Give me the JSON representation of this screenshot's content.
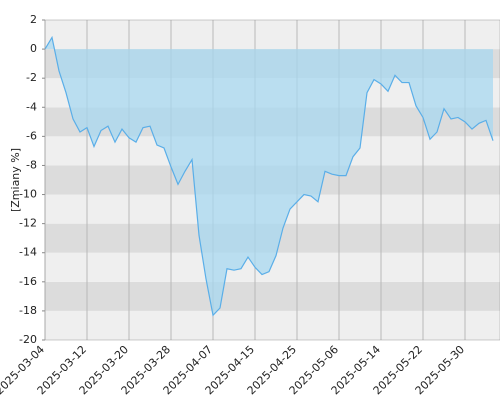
{
  "chart_data": {
    "type": "area",
    "y_label": "[Zmiany %]",
    "x": [
      "2025-03-04",
      "2025-03-05",
      "2025-03-06",
      "2025-03-07",
      "2025-03-10",
      "2025-03-11",
      "2025-03-12",
      "2025-03-13",
      "2025-03-14",
      "2025-03-17",
      "2025-03-18",
      "2025-03-19",
      "2025-03-20",
      "2025-03-21",
      "2025-03-24",
      "2025-03-25",
      "2025-03-26",
      "2025-03-27",
      "2025-03-28",
      "2025-03-31",
      "2025-04-01",
      "2025-04-02",
      "2025-04-03",
      "2025-04-04",
      "2025-04-07",
      "2025-04-08",
      "2025-04-09",
      "2025-04-10",
      "2025-04-11",
      "2025-04-14",
      "2025-04-15",
      "2025-04-16",
      "2025-04-17",
      "2025-04-22",
      "2025-04-23",
      "2025-04-24",
      "2025-04-25",
      "2025-04-28",
      "2025-04-29",
      "2025-04-30",
      "2025-05-02",
      "2025-05-05",
      "2025-05-06",
      "2025-05-07",
      "2025-05-08",
      "2025-05-09",
      "2025-05-12",
      "2025-05-13",
      "2025-05-14",
      "2025-05-15",
      "2025-05-16",
      "2025-05-19",
      "2025-05-20",
      "2025-05-21",
      "2025-05-22",
      "2025-05-23",
      "2025-05-26",
      "2025-05-27",
      "2025-05-28",
      "2025-05-29",
      "2025-05-30",
      "2025-06-02",
      "2025-06-03",
      "2025-06-04",
      "2025-06-05"
    ],
    "values": [
      0,
      0.8,
      -1.5,
      -3.0,
      -4.8,
      -5.7,
      -5.4,
      -6.7,
      -5.6,
      -5.3,
      -6.4,
      -5.5,
      -6.1,
      -6.4,
      -5.4,
      -5.3,
      -6.6,
      -6.8,
      -8.1,
      -9.3,
      -8.4,
      -7.6,
      -12.8,
      -15.8,
      -18.3,
      -17.8,
      -15.1,
      -15.2,
      -15.1,
      -14.3,
      -15.0,
      -15.5,
      -15.3,
      -14.2,
      -12.3,
      -11.0,
      -10.5,
      -10.0,
      -10.1,
      -10.5,
      -8.4,
      -8.6,
      -8.7,
      -8.7,
      -7.4,
      -6.8,
      -3.0,
      -2.1,
      -2.4,
      -2.9,
      -1.8,
      -2.3,
      -2.3,
      -3.9,
      -4.7,
      -6.2,
      -5.7,
      -4.1,
      -4.8,
      -4.7,
      -5.0,
      -5.5,
      -5.1,
      -4.9,
      -6.3
    ],
    "color": "#5aaee8",
    "fill_color": "#a8d8f0",
    "band_colors": [
      "#efefef",
      "#dcdcdc"
    ],
    "ylim": [
      -20,
      2
    ],
    "yticks": [
      -20,
      -18,
      -16,
      -14,
      -12,
      -10,
      -8,
      -6,
      -4,
      -2,
      0,
      2
    ],
    "xticks": [
      "2025-03-04",
      "2025-03-12",
      "2025-03-20",
      "2025-03-28",
      "2025-04-07",
      "2025-04-15",
      "2025-04-25",
      "2025-05-06",
      "2025-05-14",
      "2025-05-22",
      "2025-05-30"
    ],
    "grid": true
  }
}
